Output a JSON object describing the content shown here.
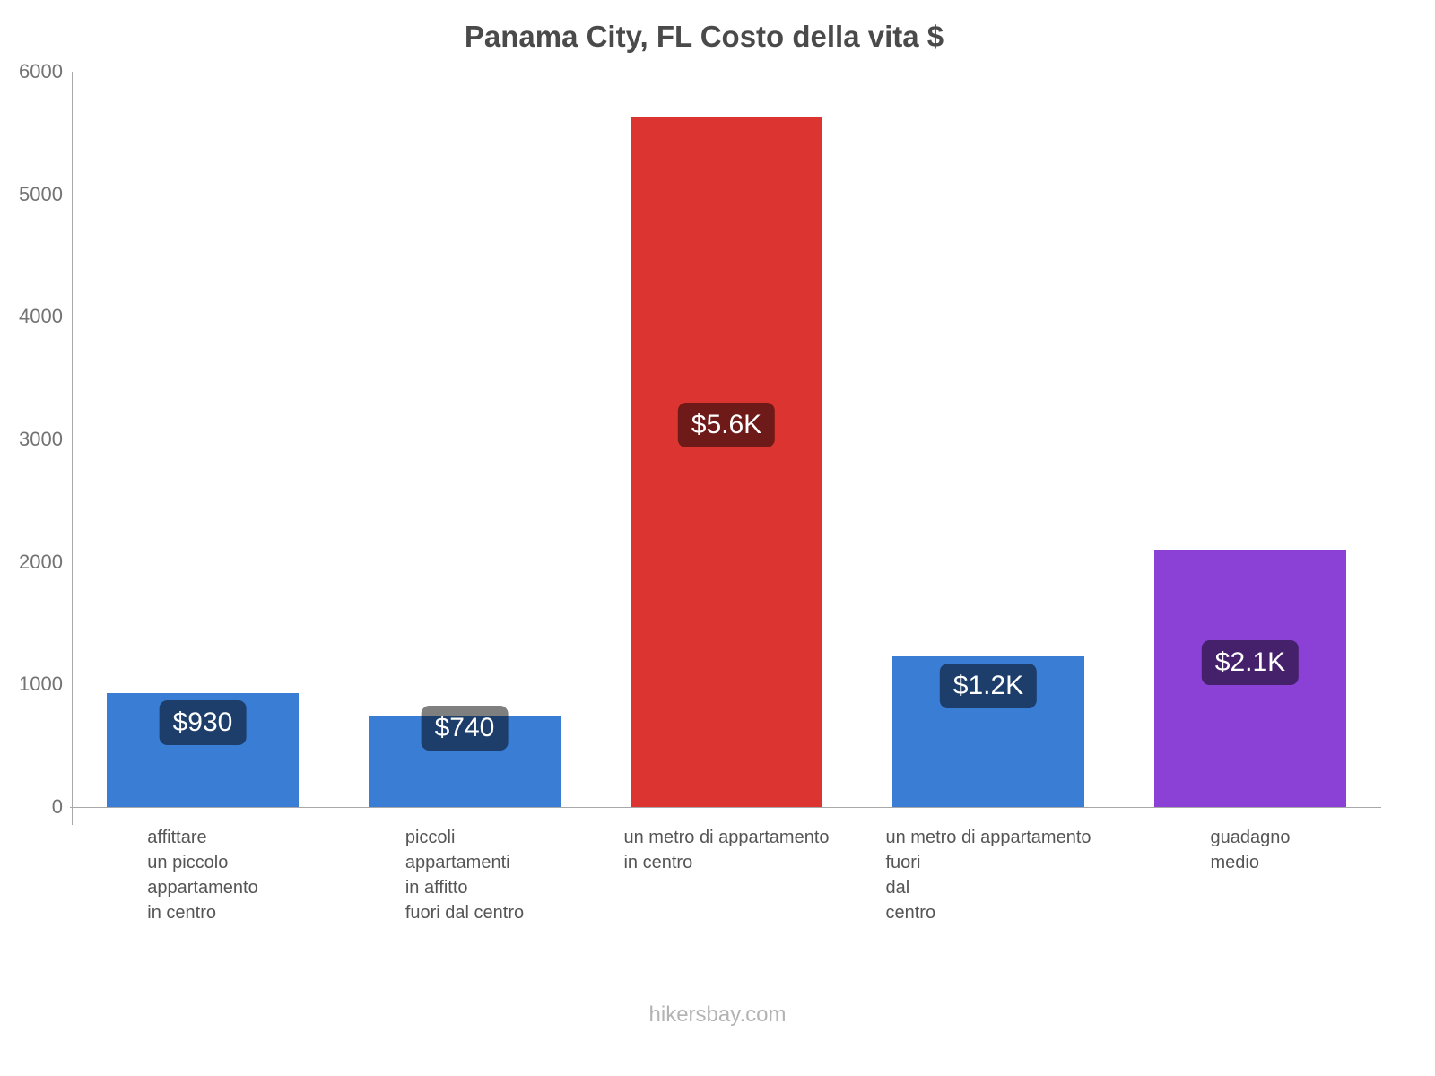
{
  "title": "Panama City, FL Costo della vita $",
  "footer": "hikersbay.com",
  "chart_data": {
    "type": "bar",
    "title": "Panama City, FL Costo della vita $",
    "categories": [
      "affittare un piccolo appartamento in centro",
      "piccoli appartamenti in affitto fuori dal centro",
      "un metro di appartamento in centro",
      "un metro di appartamento fuori dal centro",
      "guadagno medio"
    ],
    "category_lines": [
      [
        "affittare",
        "un piccolo",
        "appartamento",
        "in centro"
      ],
      [
        "piccoli",
        "appartamenti",
        "in affitto",
        "fuori dal centro"
      ],
      [
        "un metro di appartamento",
        "in centro"
      ],
      [
        "un metro di appartamento",
        "fuori",
        "dal",
        "centro"
      ],
      [
        "guadagno",
        "medio"
      ]
    ],
    "values": [
      930,
      740,
      5630,
      1230,
      2100
    ],
    "data_labels": [
      "$930",
      "$740",
      "$5.6K",
      "$1.2K",
      "$2.1K"
    ],
    "bar_colors": [
      "#3a7dd4",
      "#3a7dd4",
      "#dc3431",
      "#3a7dd4",
      "#8b40d6"
    ],
    "value_label_bg": "rgba(0,0,0,0.5)",
    "xlabel": "",
    "ylabel": "",
    "ylim": [
      0,
      6000
    ],
    "yticks": [
      "0",
      "1000",
      "2000",
      "3000",
      "4000",
      "5000",
      "6000"
    ],
    "grid": false,
    "legend": "none"
  }
}
